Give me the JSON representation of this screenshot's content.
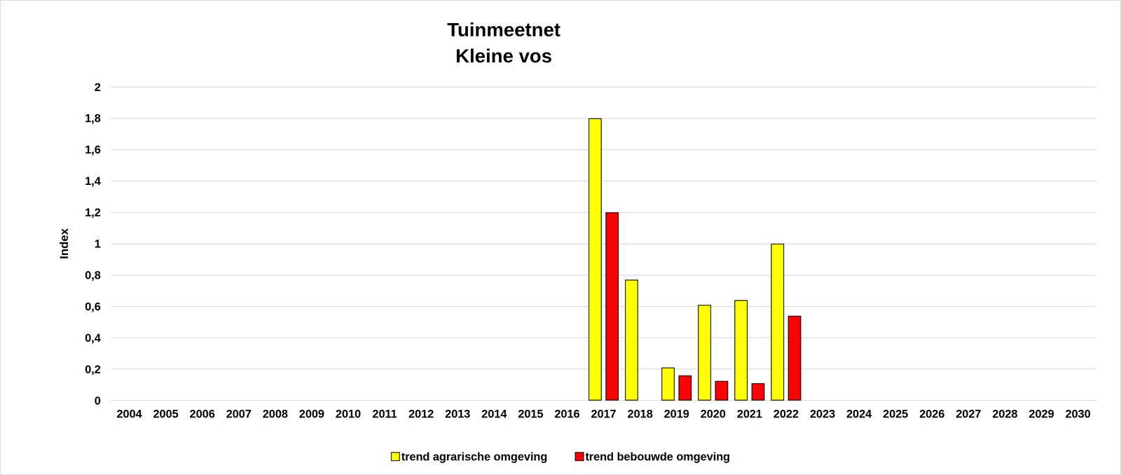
{
  "chart_data": {
    "type": "bar",
    "title": "Tuinmeetnet",
    "subtitle": "Kleine vos",
    "y_label": "Index",
    "categories": [
      "2004",
      "2005",
      "2006",
      "2007",
      "2008",
      "2009",
      "2010",
      "2011",
      "2012",
      "2013",
      "2014",
      "2015",
      "2016",
      "2017",
      "2018",
      "2019",
      "2020",
      "2021",
      "2022",
      "2023",
      "2024",
      "2025",
      "2026",
      "2027",
      "2028",
      "2029",
      "2030"
    ],
    "series": [
      {
        "name": "trend agrarische omgeving",
        "color": "#ffff00",
        "values": [
          null,
          null,
          null,
          null,
          null,
          null,
          null,
          null,
          null,
          null,
          null,
          null,
          null,
          1.8,
          0.77,
          0.21,
          0.61,
          0.64,
          1.0,
          null,
          null,
          null,
          null,
          null,
          null,
          null,
          null
        ]
      },
      {
        "name": "trend bebouwde omgeving",
        "color": "#ff0000",
        "values": [
          null,
          null,
          null,
          null,
          null,
          null,
          null,
          null,
          null,
          null,
          null,
          null,
          null,
          1.2,
          null,
          0.16,
          0.125,
          0.11,
          0.54,
          null,
          null,
          null,
          null,
          null,
          null,
          null,
          null
        ]
      }
    ],
    "ylim": [
      0,
      2
    ],
    "yticks": [
      0,
      {
        "value": 0.2,
        "label": "0,2"
      },
      {
        "value": 0.4,
        "label": "0,4"
      },
      {
        "value": 0.6,
        "label": "0,6"
      },
      {
        "value": 0.8,
        "label": "0,8"
      },
      1,
      {
        "value": 1.2,
        "label": "1,2"
      },
      {
        "value": 1.4,
        "label": "1,4"
      },
      {
        "value": 1.6,
        "label": "1,6"
      },
      {
        "value": 1.8,
        "label": "1,8"
      },
      2
    ],
    "grid": true,
    "legend": "bottom"
  }
}
